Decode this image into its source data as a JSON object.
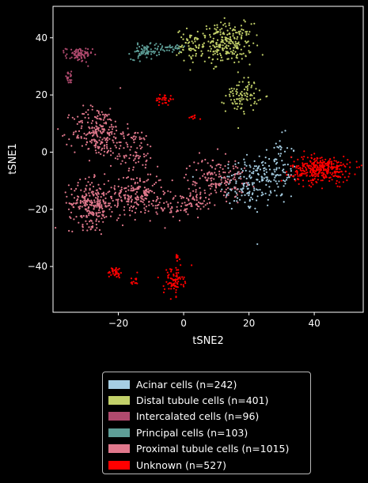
{
  "chart_data": {
    "type": "scatter",
    "title": "",
    "xlabel": "tSNE2",
    "ylabel": "tSNE1",
    "xlim": [
      -40,
      55
    ],
    "ylim": [
      -56,
      51
    ],
    "xticks": [
      -20,
      0,
      20,
      40
    ],
    "yticks": [
      -40,
      -20,
      0,
      20,
      40
    ],
    "xtick_labels": [
      "−20",
      "0",
      "20",
      "40"
    ],
    "ytick_labels": [
      "−40",
      "−20",
      "0",
      "20",
      "40"
    ],
    "grid": false,
    "legend_position": "below",
    "series": [
      {
        "name": "Acinar cells (n=242)",
        "color": "#a6cee3",
        "count": 242,
        "clusters": [
          {
            "cx": 19,
            "cy": -11,
            "sx": 4,
            "sy": 5,
            "n": 120
          },
          {
            "cx": 28,
            "cy": -7,
            "sx": 3.5,
            "sy": 6,
            "n": 122
          }
        ]
      },
      {
        "name": "Distal tubule cells (n=401)",
        "color": "#c2d069",
        "count": 401,
        "clusters": [
          {
            "cx": 13,
            "cy": 38,
            "sx": 4,
            "sy": 3.5,
            "n": 250
          },
          {
            "cx": 2,
            "cy": 37,
            "sx": 2,
            "sy": 3,
            "n": 60
          },
          {
            "cx": 18,
            "cy": 20,
            "sx": 2.5,
            "sy": 3,
            "n": 91
          }
        ]
      },
      {
        "name": "Intercalated cells (n=96)",
        "color": "#b04a6e",
        "count": 96,
        "clusters": [
          {
            "cx": -32,
            "cy": 34,
            "sx": 2,
            "sy": 1.3,
            "n": 76
          },
          {
            "cx": -35,
            "cy": 26,
            "sx": 0.8,
            "sy": 1,
            "n": 20
          }
        ]
      },
      {
        "name": "Principal cells (n=103)",
        "color": "#5e9e97",
        "count": 103,
        "clusters": [
          {
            "cx": -12,
            "cy": 35,
            "sx": 2,
            "sy": 1.3,
            "n": 65
          },
          {
            "cx": -5,
            "cy": 36.5,
            "sx": 3,
            "sy": 0.8,
            "n": 38
          }
        ]
      },
      {
        "name": "Proximal tubule cells (n=1015)",
        "color": "#e0788c",
        "count": 1015,
        "clusters": [
          {
            "cx": -26,
            "cy": 7,
            "sx": 4,
            "sy": 4.5,
            "n": 230
          },
          {
            "cx": -15,
            "cy": 1,
            "sx": 3,
            "sy": 3.5,
            "n": 80
          },
          {
            "cx": -28,
            "cy": -18,
            "sx": 3.5,
            "sy": 4,
            "n": 260
          },
          {
            "cx": -14,
            "cy": -15,
            "sx": 4,
            "sy": 4,
            "n": 200
          },
          {
            "cx": -3,
            "cy": -19,
            "sx": 3,
            "sy": 2,
            "n": 45
          },
          {
            "cx": 10,
            "cy": -9,
            "sx": 4.5,
            "sy": 3.5,
            "n": 150
          },
          {
            "cx": 4,
            "cy": -17,
            "sx": 2.5,
            "sy": 2.5,
            "n": 50
          }
        ]
      },
      {
        "name": "Unknown (n=527)",
        "color": "#ff0000",
        "count": 527,
        "clusters": [
          {
            "cx": 42,
            "cy": -6,
            "sx": 4.5,
            "sy": 2.3,
            "n": 350
          },
          {
            "cx": -6,
            "cy": 18.5,
            "sx": 1.3,
            "sy": 1,
            "n": 30
          },
          {
            "cx": 3,
            "cy": 12,
            "sx": 0.8,
            "sy": 0.5,
            "n": 10
          },
          {
            "cx": -21,
            "cy": -42,
            "sx": 1.2,
            "sy": 1,
            "n": 35
          },
          {
            "cx": -15,
            "cy": -45,
            "sx": 0.6,
            "sy": 1,
            "n": 12
          },
          {
            "cx": -3,
            "cy": -45,
            "sx": 1.5,
            "sy": 2.5,
            "n": 80
          },
          {
            "cx": -2,
            "cy": -36.5,
            "sx": 0.7,
            "sy": 0.6,
            "n": 10
          }
        ]
      }
    ]
  }
}
